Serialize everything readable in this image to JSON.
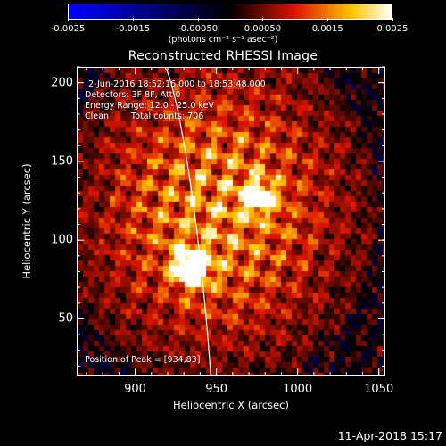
{
  "colorbar": {
    "ticks": [
      "-0.0025",
      "-0.0015",
      "-0.00050",
      "0.00050",
      "0.0015",
      "0.0025"
    ],
    "tick_values": [
      -0.0025,
      -0.0015,
      -0.0005,
      0.0005,
      0.0015,
      0.0025
    ],
    "range": [
      -0.0025,
      0.0025
    ],
    "unit_label": "(photons cm⁻² s⁻¹ asec⁻²)",
    "colors": [
      "#0000ff",
      "#000000",
      "#ff0000",
      "#ffff00",
      "#ffffff"
    ]
  },
  "title": "Reconstructed RHESSI Image",
  "info": {
    "time_range": "2-Jun-2016 18:52:16.000 to 18:53:48.000",
    "detectors": "Detectors: 3F 8F, Att 0",
    "energy": "Energy Range: 12.0 - 25.0 keV",
    "clean": "Clean",
    "counts": "Total counts: 706",
    "peak": "Position of Peak = [934,83]"
  },
  "axes": {
    "xlabel": "Heliocentric X (arcsec)",
    "ylabel": "Heliocentric Y (arcsec)",
    "xticks": [
      "900",
      "950",
      "1000",
      "1050"
    ],
    "xtick_values": [
      900,
      950,
      1000,
      1050
    ],
    "yticks": [
      "50",
      "100",
      "150",
      "200"
    ],
    "ytick_values": [
      50,
      100,
      150,
      200
    ],
    "xrange": [
      864,
      1054
    ],
    "yrange": [
      14,
      210
    ]
  },
  "image": {
    "peak_arcsec": [
      934,
      83
    ],
    "limb_color": "#ffffff"
  },
  "footer": "11-Apr-2018 15:17"
}
